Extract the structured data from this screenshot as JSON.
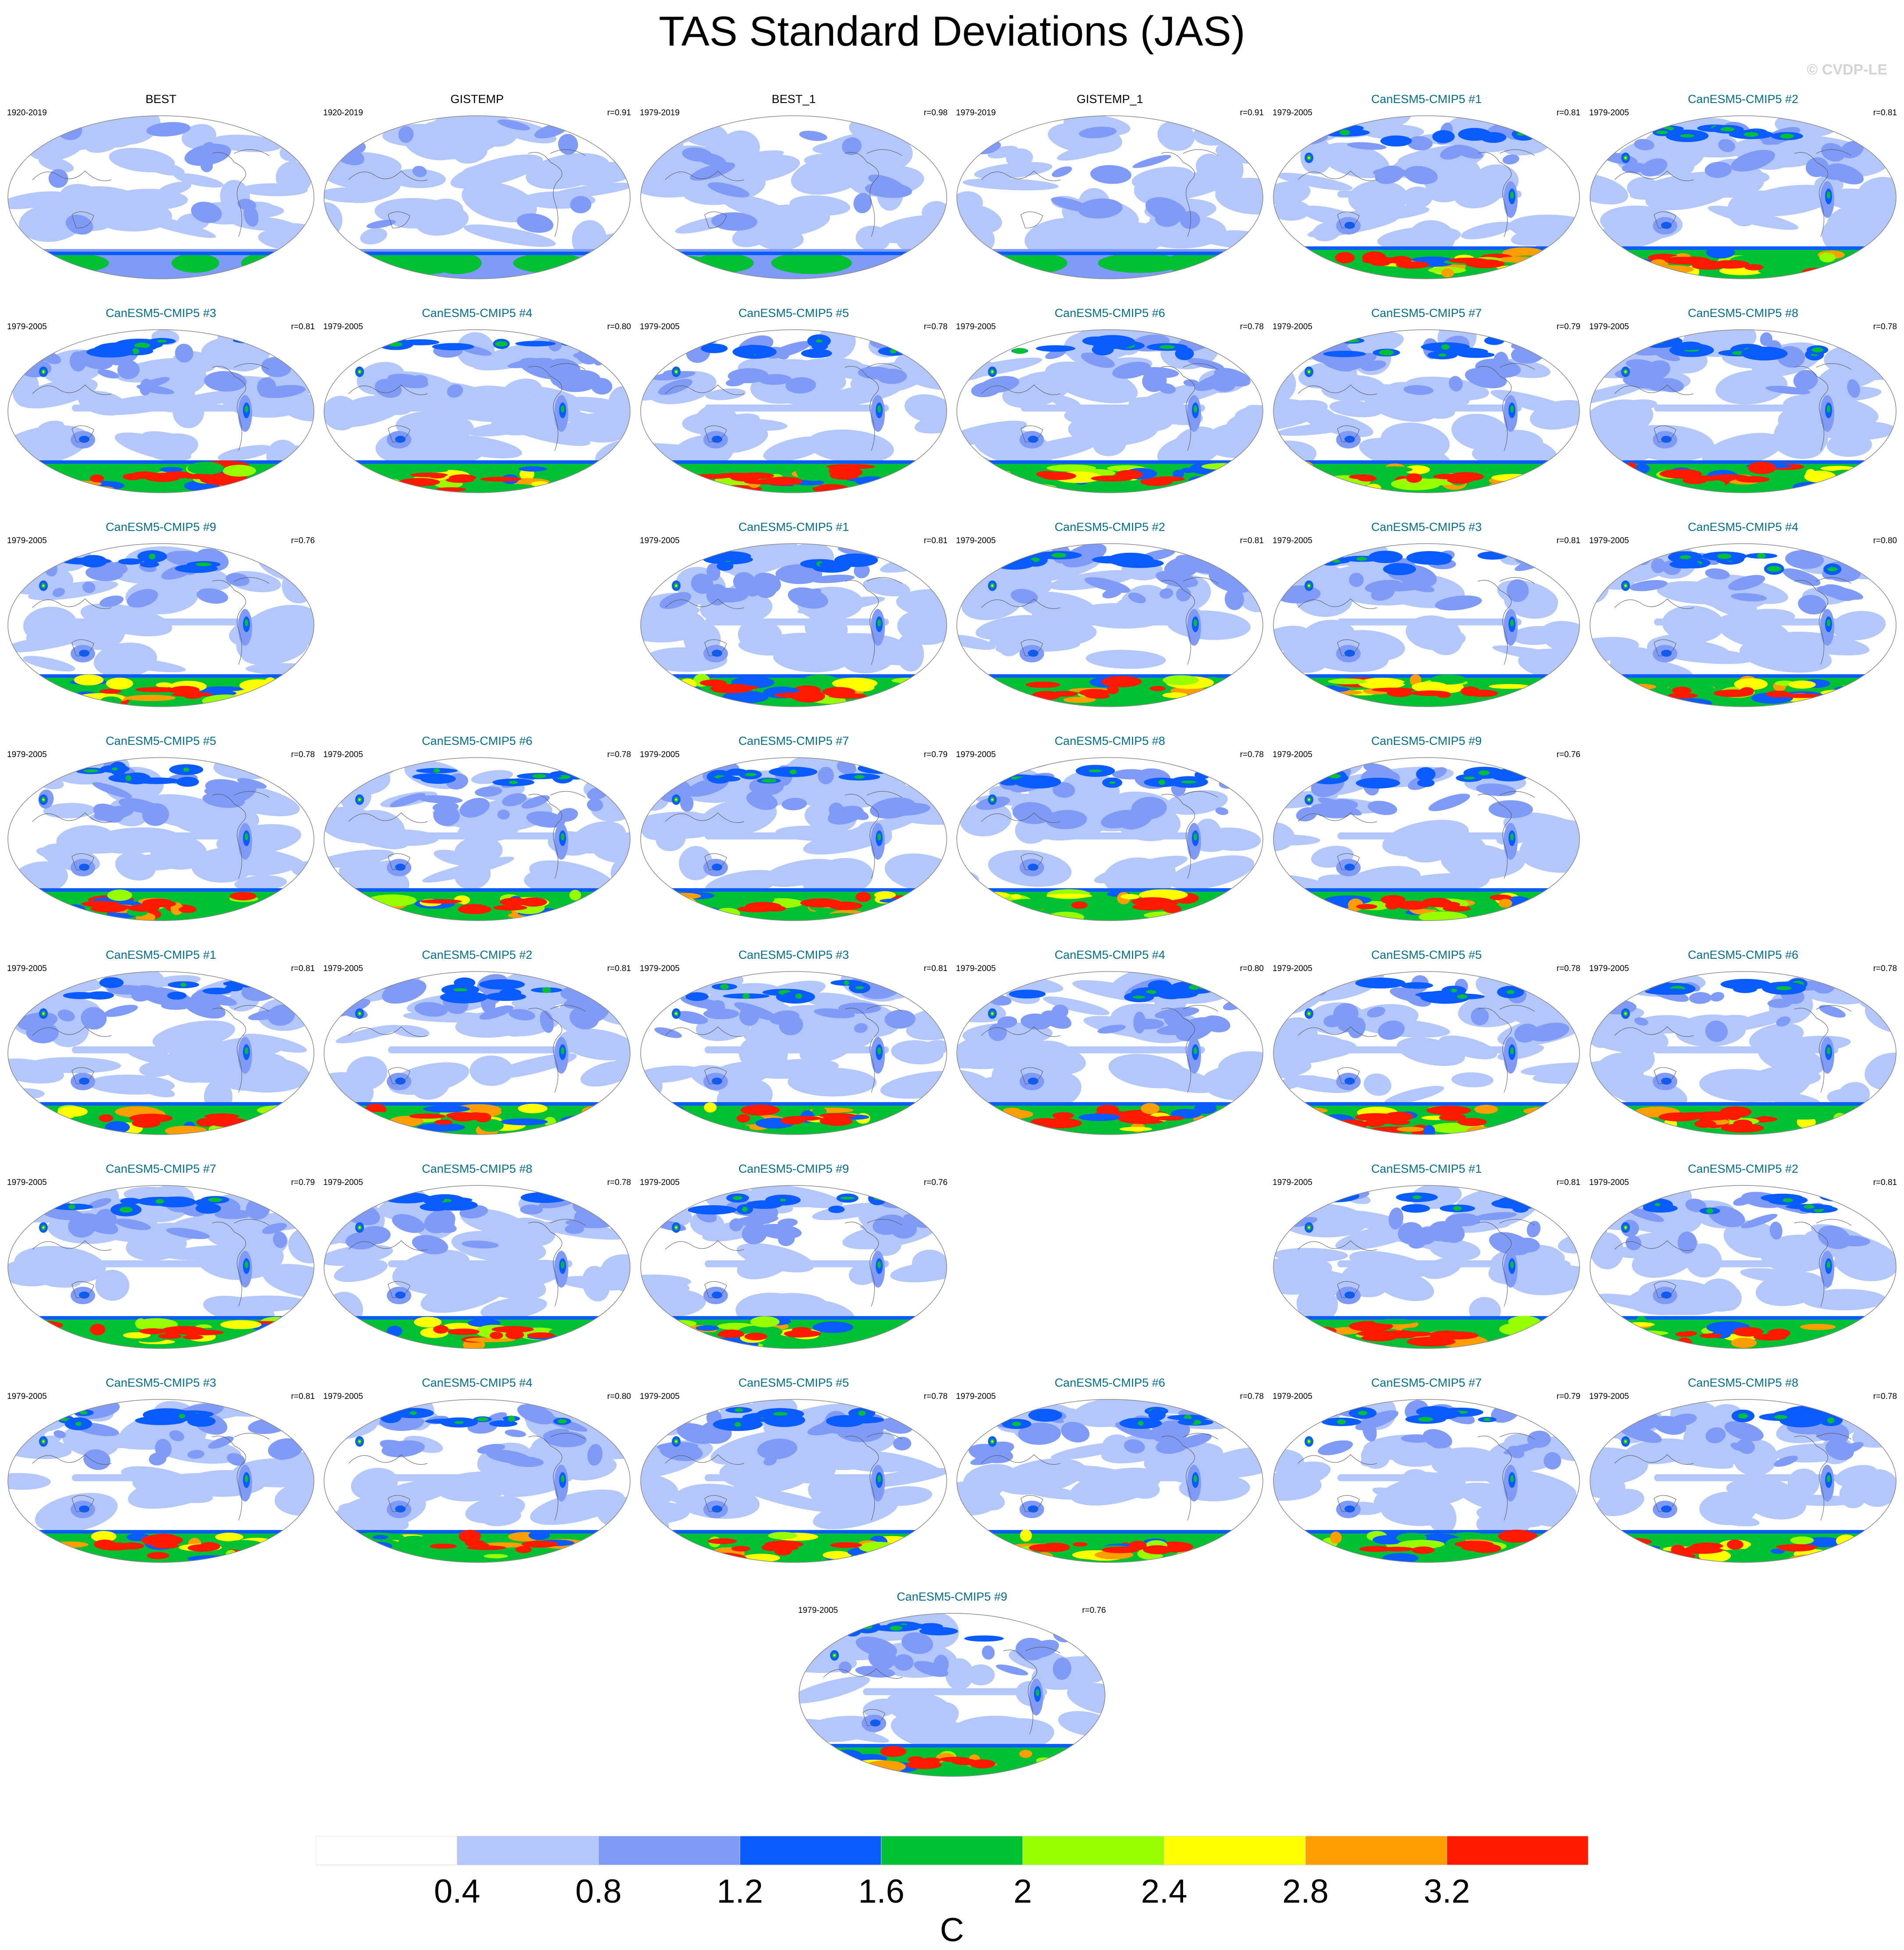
{
  "title": "TAS Standard Deviations (JAS)",
  "watermark": "© CVDP-LE",
  "colors": {
    "obs_title": "#000000",
    "model_title": "#006f8f",
    "levels": [
      "#ffffff",
      "#b4c7fb",
      "#7f9bf6",
      "#0a5cff",
      "#00c034",
      "#97ff00",
      "#ffff00",
      "#ff9e00",
      "#ff1a00"
    ],
    "coast": "#555555",
    "border": "#888888"
  },
  "chart_data": {
    "type": "heatmap",
    "variable": "TAS",
    "season": "JAS",
    "units": "C",
    "colorbar": {
      "levels": [
        0.4,
        0.8,
        1.2,
        1.6,
        2,
        2.4,
        2.8,
        3.2
      ],
      "tick_labels": [
        "0.4",
        "0.8",
        "1.2",
        "1.6",
        "2",
        "2.4",
        "2.8",
        "3.2"
      ],
      "units_label": "C"
    },
    "panels": [
      {
        "name": "BEST",
        "period": "1920-2019",
        "r": "",
        "kind": "obs"
      },
      {
        "name": "GISTEMP",
        "period": "1920-2019",
        "r": "r=0.91",
        "kind": "obs"
      },
      {
        "name": "BEST_1",
        "period": "1979-2019",
        "r": "r=0.98",
        "kind": "obs"
      },
      {
        "name": "GISTEMP_1",
        "period": "1979-2019",
        "r": "r=0.91",
        "kind": "obs"
      },
      {
        "name": "CanESM5-CMIP5 #1",
        "period": "1979-2005",
        "r": "r=0.81",
        "kind": "model"
      },
      {
        "name": "CanESM5-CMIP5 #2",
        "period": "1979-2005",
        "r": "r=0.81",
        "kind": "model"
      },
      {
        "name": "CanESM5-CMIP5 #3",
        "period": "1979-2005",
        "r": "r=0.81",
        "kind": "model"
      },
      {
        "name": "CanESM5-CMIP5 #4",
        "period": "1979-2005",
        "r": "r=0.80",
        "kind": "model"
      },
      {
        "name": "CanESM5-CMIP5 #5",
        "period": "1979-2005",
        "r": "r=0.78",
        "kind": "model"
      },
      {
        "name": "CanESM5-CMIP5 #6",
        "period": "1979-2005",
        "r": "r=0.78",
        "kind": "model"
      },
      {
        "name": "CanESM5-CMIP5 #7",
        "period": "1979-2005",
        "r": "r=0.79",
        "kind": "model"
      },
      {
        "name": "CanESM5-CMIP5 #8",
        "period": "1979-2005",
        "r": "r=0.78",
        "kind": "model"
      },
      {
        "name": "CanESM5-CMIP5 #9",
        "period": "1979-2005",
        "r": "r=0.76",
        "kind": "model"
      },
      {
        "name": "CanESM5-CMIP5 #1",
        "period": "1979-2005",
        "r": "r=0.81",
        "kind": "model"
      },
      {
        "name": "CanESM5-CMIP5 #2",
        "period": "1979-2005",
        "r": "r=0.81",
        "kind": "model"
      },
      {
        "name": "CanESM5-CMIP5 #3",
        "period": "1979-2005",
        "r": "r=0.81",
        "kind": "model"
      },
      {
        "name": "CanESM5-CMIP5 #4",
        "period": "1979-2005",
        "r": "r=0.80",
        "kind": "model"
      },
      {
        "name": "CanESM5-CMIP5 #5",
        "period": "1979-2005",
        "r": "r=0.78",
        "kind": "model"
      },
      {
        "name": "CanESM5-CMIP5 #6",
        "period": "1979-2005",
        "r": "r=0.78",
        "kind": "model"
      },
      {
        "name": "CanESM5-CMIP5 #7",
        "period": "1979-2005",
        "r": "r=0.79",
        "kind": "model"
      },
      {
        "name": "CanESM5-CMIP5 #8",
        "period": "1979-2005",
        "r": "r=0.78",
        "kind": "model"
      },
      {
        "name": "CanESM5-CMIP5 #9",
        "period": "1979-2005",
        "r": "r=0.76",
        "kind": "model"
      },
      {
        "name": "CanESM5-CMIP5 #1",
        "period": "1979-2005",
        "r": "r=0.81",
        "kind": "model"
      },
      {
        "name": "CanESM5-CMIP5 #2",
        "period": "1979-2005",
        "r": "r=0.81",
        "kind": "model"
      },
      {
        "name": "CanESM5-CMIP5 #3",
        "period": "1979-2005",
        "r": "r=0.81",
        "kind": "model"
      },
      {
        "name": "CanESM5-CMIP5 #4",
        "period": "1979-2005",
        "r": "r=0.80",
        "kind": "model"
      },
      {
        "name": "CanESM5-CMIP5 #5",
        "period": "1979-2005",
        "r": "r=0.78",
        "kind": "model"
      },
      {
        "name": "CanESM5-CMIP5 #6",
        "period": "1979-2005",
        "r": "r=0.78",
        "kind": "model"
      },
      {
        "name": "CanESM5-CMIP5 #7",
        "period": "1979-2005",
        "r": "r=0.79",
        "kind": "model"
      },
      {
        "name": "CanESM5-CMIP5 #8",
        "period": "1979-2005",
        "r": "r=0.78",
        "kind": "model"
      },
      {
        "name": "CanESM5-CMIP5 #9",
        "period": "1979-2005",
        "r": "r=0.76",
        "kind": "model"
      },
      {
        "name": "CanESM5-CMIP5 #1",
        "period": "1979-2005",
        "r": "r=0.81",
        "kind": "model"
      },
      {
        "name": "CanESM5-CMIP5 #2",
        "period": "1979-2005",
        "r": "r=0.81",
        "kind": "model"
      },
      {
        "name": "CanESM5-CMIP5 #3",
        "period": "1979-2005",
        "r": "r=0.81",
        "kind": "model"
      },
      {
        "name": "CanESM5-CMIP5 #4",
        "period": "1979-2005",
        "r": "r=0.80",
        "kind": "model"
      },
      {
        "name": "CanESM5-CMIP5 #5",
        "period": "1979-2005",
        "r": "r=0.78",
        "kind": "model"
      },
      {
        "name": "CanESM5-CMIP5 #6",
        "period": "1979-2005",
        "r": "r=0.78",
        "kind": "model"
      },
      {
        "name": "CanESM5-CMIP5 #7",
        "period": "1979-2005",
        "r": "r=0.79",
        "kind": "model"
      },
      {
        "name": "CanESM5-CMIP5 #8",
        "period": "1979-2005",
        "r": "r=0.78",
        "kind": "model"
      },
      {
        "name": "CanESM5-CMIP5 #9",
        "period": "1979-2005",
        "r": "r=0.76",
        "kind": "model"
      }
    ]
  }
}
